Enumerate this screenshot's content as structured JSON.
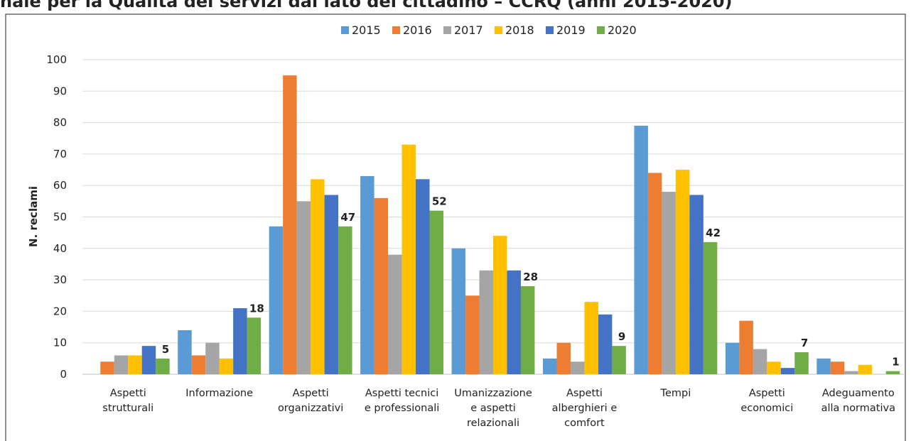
{
  "chart_data": {
    "type": "bar",
    "title": "nale per la Qualità dei servizi dal lato del cittadino – CCRQ (anni 2015-2020)",
    "y_label": "N. reclami",
    "categories": [
      [
        "Aspetti",
        "strutturali"
      ],
      [
        "Informazione"
      ],
      [
        "Aspetti",
        "organizzativi"
      ],
      [
        "Aspetti tecnici",
        "e professionali"
      ],
      [
        "Umanizzazione",
        "e aspetti",
        "relazionali"
      ],
      [
        "Aspetti",
        "alberghieri e",
        "comfort"
      ],
      [
        "Tempi"
      ],
      [
        "Aspetti",
        "economici"
      ],
      [
        "Adeguamento",
        "alla normativa"
      ]
    ],
    "series": [
      {
        "name": "2015",
        "color": "#5b9bd5",
        "values": [
          0,
          14,
          47,
          63,
          40,
          5,
          79,
          10,
          5
        ]
      },
      {
        "name": "2016",
        "color": "#ed7d31",
        "values": [
          4,
          6,
          95,
          56,
          25,
          10,
          64,
          17,
          4
        ]
      },
      {
        "name": "2017",
        "color": "#a5a5a5",
        "values": [
          6,
          10,
          55,
          38,
          33,
          4,
          58,
          8,
          1
        ]
      },
      {
        "name": "2018",
        "color": "#ffc000",
        "values": [
          6,
          5,
          62,
          73,
          44,
          23,
          65,
          4,
          3
        ]
      },
      {
        "name": "2019",
        "color": "#4472c4",
        "values": [
          9,
          21,
          57,
          62,
          33,
          19,
          57,
          2,
          0
        ]
      },
      {
        "name": "2020",
        "color": "#70ad47",
        "values": [
          5,
          18,
          47,
          52,
          28,
          9,
          42,
          7,
          1
        ],
        "show_value_labels": true
      }
    ],
    "ylim": [
      0,
      100
    ],
    "yticks": [
      0,
      10,
      20,
      30,
      40,
      50,
      60,
      70,
      80,
      90,
      100
    ],
    "grid": true,
    "legend": "top"
  }
}
